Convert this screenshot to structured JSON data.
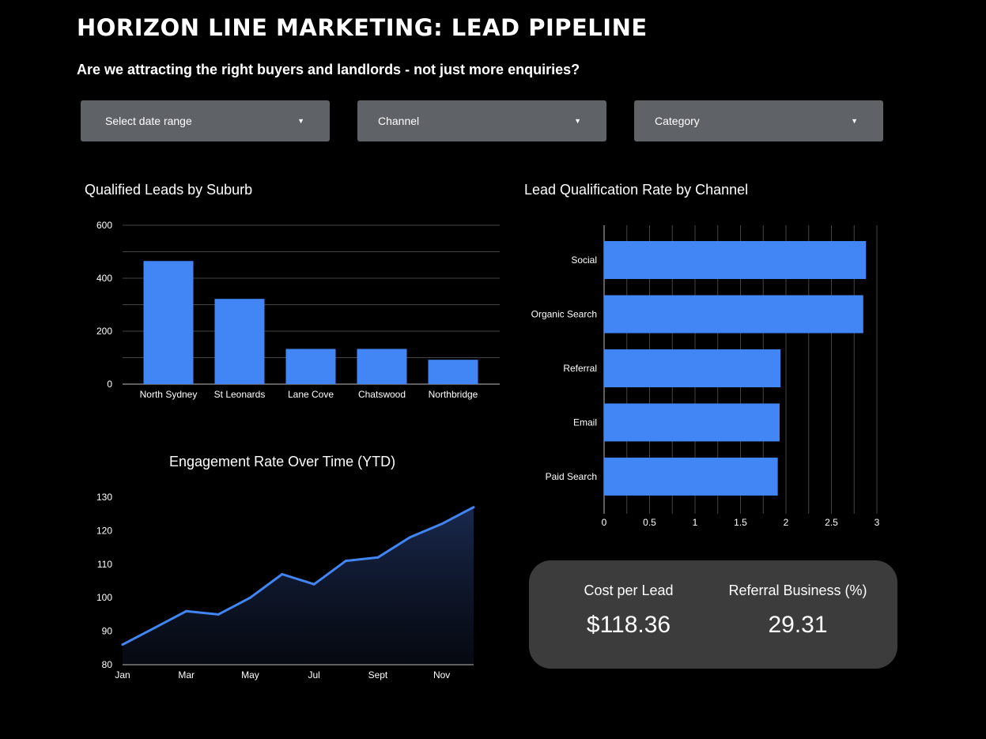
{
  "header": {
    "title": "HORIZON LINE MARKETING: LEAD PIPELINE",
    "subtitle": "Are we attracting the right buyers and landlords - not just more enquiries?"
  },
  "filters": {
    "date_range": "Select date range",
    "channel": "Channel",
    "category": "Category",
    "caret_icon": "caret-down-icon"
  },
  "colors": {
    "bar": "#4285f4",
    "background": "#000000",
    "card": "#3c3c3c",
    "filter": "#5f6368"
  },
  "chart_data": [
    {
      "type": "bar",
      "title": "Qualified Leads by Suburb",
      "categories": [
        "North Sydney",
        "St Leonards",
        "Lane Cove",
        "Chatswood",
        "Northbridge"
      ],
      "values": [
        465,
        322,
        133,
        133,
        92
      ],
      "yticks": [
        0,
        200,
        400,
        600
      ],
      "ylim": [
        0,
        600
      ],
      "xlabel": "",
      "ylabel": ""
    },
    {
      "type": "bar",
      "orientation": "horizontal",
      "title": "Lead Qualification Rate by Channel",
      "categories": [
        "Social",
        "Organic Search",
        "Referral",
        "Email",
        "Paid Search"
      ],
      "values": [
        2.88,
        2.85,
        1.94,
        1.93,
        1.91
      ],
      "xticks": [
        "0",
        "0.5",
        "1",
        "1.5",
        "2",
        "2.5",
        "3"
      ],
      "xlim": [
        0,
        3
      ],
      "xlabel": "",
      "ylabel": ""
    },
    {
      "type": "area",
      "title": "Engagement Rate Over Time (YTD)",
      "x": [
        "Jan",
        "Feb",
        "Mar",
        "Apr",
        "May",
        "Jun",
        "Jul",
        "Aug",
        "Sept",
        "Oct",
        "Nov",
        "Dec"
      ],
      "values": [
        86,
        91,
        96,
        95,
        100,
        107,
        104,
        111,
        112,
        118,
        122,
        127
      ],
      "xtick_labels": [
        "Jan",
        "Mar",
        "May",
        "Jul",
        "Sept",
        "Nov"
      ],
      "yticks": [
        80,
        90,
        100,
        110,
        120,
        130
      ],
      "ylim": [
        80,
        130
      ],
      "xlabel": "",
      "ylabel": ""
    }
  ],
  "kpis": {
    "cost_per_lead": {
      "label": "Cost per Lead",
      "value": "$118.36"
    },
    "referral_business": {
      "label": "Referral Business (%)",
      "value": "29.31"
    }
  }
}
